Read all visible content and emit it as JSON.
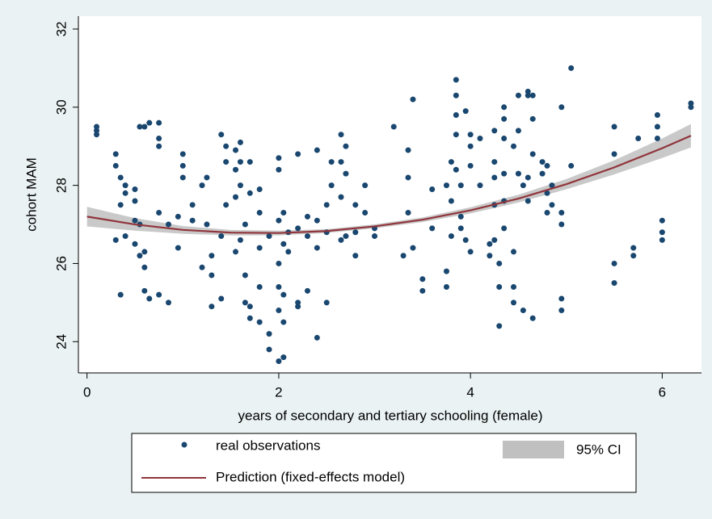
{
  "chart_data": {
    "type": "scatter",
    "xlabel": "years of secondary and tertiary schooling (female)",
    "ylabel": "cohort MAM",
    "xlim": [
      -0.09,
      6.41
    ],
    "ylim": [
      23.2,
      32.33
    ],
    "xticks": [
      0,
      2,
      4,
      6
    ],
    "yticks": [
      24,
      26,
      28,
      30,
      32
    ],
    "grid": false,
    "series": [
      {
        "name": "real observations",
        "color": "#1a476f",
        "x": [
          0.1,
          0.1,
          0.1,
          0.3,
          0.3,
          0.3,
          0.35,
          0.35,
          0.35,
          0.4,
          0.4,
          0.4,
          0.5,
          0.5,
          0.5,
          0.5,
          0.55,
          0.55,
          0.55,
          0.6,
          0.6,
          0.6,
          0.6,
          0.65,
          0.65,
          0.75,
          0.75,
          0.75,
          0.75,
          0.75,
          0.85,
          0.85,
          0.95,
          0.95,
          1.0,
          1.0,
          1.0,
          1.1,
          1.1,
          1.2,
          1.2,
          1.25,
          1.25,
          1.3,
          1.3,
          1.3,
          1.4,
          1.4,
          1.4,
          1.45,
          1.45,
          1.45,
          1.55,
          1.55,
          1.55,
          1.55,
          1.6,
          1.6,
          1.6,
          1.6,
          1.65,
          1.65,
          1.65,
          1.7,
          1.7,
          1.7,
          1.7,
          1.8,
          1.8,
          1.8,
          1.8,
          1.8,
          1.9,
          1.9,
          1.9,
          2.0,
          2.0,
          2.0,
          2.0,
          2.0,
          2.0,
          2.0,
          2.05,
          2.05,
          2.05,
          2.05,
          2.05,
          2.1,
          2.1,
          2.2,
          2.2,
          2.2,
          2.2,
          2.3,
          2.3,
          2.3,
          2.4,
          2.4,
          2.4,
          2.4,
          2.5,
          2.5,
          2.5,
          2.55,
          2.55,
          2.65,
          2.65,
          2.65,
          2.65,
          2.7,
          2.7,
          2.7,
          2.8,
          2.8,
          2.8,
          2.9,
          2.9,
          3.0,
          3.0,
          3.2,
          3.3,
          3.35,
          3.35,
          3.35,
          3.4,
          3.4,
          3.5,
          3.5,
          3.6,
          3.6,
          3.75,
          3.75,
          3.75,
          3.8,
          3.8,
          3.8,
          3.85,
          3.85,
          3.85,
          3.85,
          3.85,
          3.9,
          3.9,
          3.9,
          3.95,
          3.95,
          4.0,
          4.0,
          4.0,
          4.0,
          4.1,
          4.1,
          4.2,
          4.2,
          4.25,
          4.25,
          4.25,
          4.25,
          4.25,
          4.3,
          4.3,
          4.3,
          4.35,
          4.35,
          4.35,
          4.35,
          4.35,
          4.35,
          4.45,
          4.45,
          4.45,
          4.45,
          4.5,
          4.5,
          4.5,
          4.55,
          4.55,
          4.6,
          4.6,
          4.6,
          4.6,
          4.65,
          4.65,
          4.65,
          4.65,
          4.75,
          4.75,
          4.8,
          4.8,
          4.8,
          4.85,
          4.85,
          4.95,
          4.95,
          4.95,
          4.95,
          4.95,
          5.05,
          5.05,
          5.5,
          5.5,
          5.5,
          5.5,
          5.7,
          5.7,
          5.75,
          5.95,
          5.95,
          5.95,
          6.0,
          6.0,
          6.0,
          6.3,
          6.3
        ],
        "values": [
          29.3,
          29.4,
          29.5,
          28.8,
          28.5,
          26.6,
          25.2,
          27.5,
          28.2,
          26.7,
          27.8,
          28.0,
          27.9,
          27.6,
          27.1,
          26.5,
          29.5,
          26.2,
          27.0,
          29.5,
          26.3,
          25.9,
          25.3,
          29.6,
          25.1,
          29.6,
          29.2,
          29.0,
          25.2,
          27.3,
          25.0,
          27.0,
          26.4,
          27.2,
          28.8,
          28.5,
          28.2,
          27.5,
          27.1,
          25.9,
          28.0,
          28.2,
          27.0,
          26.2,
          25.7,
          24.9,
          29.3,
          25.1,
          26.7,
          29.0,
          28.6,
          27.5,
          28.9,
          28.4,
          27.7,
          26.3,
          29.1,
          28.6,
          28.0,
          26.6,
          27.0,
          25.7,
          25.0,
          28.6,
          27.8,
          24.6,
          24.9,
          27.9,
          27.3,
          26.4,
          25.4,
          24.5,
          24.2,
          23.8,
          26.7,
          28.7,
          28.4,
          23.5,
          24.8,
          25.4,
          26.0,
          27.1,
          27.3,
          26.5,
          25.2,
          24.5,
          23.6,
          26.8,
          26.3,
          28.8,
          26.9,
          25.0,
          24.9,
          27.2,
          26.7,
          25.3,
          28.9,
          27.1,
          26.4,
          24.1,
          27.5,
          26.8,
          25.0,
          28.6,
          28.0,
          29.3,
          28.6,
          27.7,
          26.6,
          29.0,
          28.3,
          26.7,
          27.5,
          26.2,
          26.8,
          28.0,
          27.3,
          26.7,
          26.9,
          29.5,
          26.2,
          28.9,
          28.2,
          27.3,
          30.2,
          26.4,
          25.3,
          25.6,
          27.9,
          26.9,
          28.0,
          25.4,
          25.8,
          28.6,
          27.6,
          26.7,
          30.7,
          30.3,
          29.8,
          29.3,
          28.4,
          28.0,
          27.2,
          26.9,
          29.9,
          26.6,
          29.3,
          29.0,
          28.5,
          26.3,
          29.2,
          28.0,
          26.2,
          26.5,
          29.4,
          28.6,
          28.2,
          27.5,
          26.6,
          26.0,
          25.4,
          24.4,
          30.0,
          29.7,
          29.2,
          28.3,
          27.6,
          26.9,
          29.0,
          26.3,
          25.0,
          25.4,
          30.3,
          29.4,
          28.3,
          28.0,
          24.8,
          30.4,
          30.3,
          28.2,
          27.6,
          30.3,
          29.7,
          28.8,
          24.6,
          28.6,
          28.3,
          28.5,
          27.8,
          27.3,
          28.0,
          27.5,
          30.0,
          27.3,
          27.0,
          25.1,
          24.8,
          31.0,
          28.5,
          29.5,
          26.0,
          25.5,
          28.8,
          26.4,
          26.2,
          29.2,
          29.8,
          29.5,
          29.2,
          27.1,
          26.8,
          26.6,
          30.1,
          30.0
        ]
      },
      {
        "name": "Prediction (fixed-effects model)",
        "color": "#90353b",
        "x": [
          0,
          0.5,
          1,
          1.5,
          2,
          2.5,
          3,
          3.5,
          4,
          4.5,
          5,
          5.5,
          6,
          6.3
        ],
        "values": [
          27.2,
          27.0,
          26.86,
          26.79,
          26.78,
          26.83,
          26.95,
          27.12,
          27.36,
          27.66,
          28.03,
          28.46,
          28.95,
          29.27
        ]
      },
      {
        "name": "95% CI",
        "color": "#c0c0c0",
        "x": [
          0,
          0.5,
          1,
          1.5,
          2,
          2.5,
          3,
          3.5,
          4,
          4.5,
          5,
          5.5,
          6,
          6.3
        ],
        "lower": [
          26.95,
          26.84,
          26.76,
          26.72,
          26.72,
          26.78,
          26.9,
          27.06,
          27.28,
          27.56,
          27.9,
          28.28,
          28.7,
          28.97
        ],
        "upper": [
          27.45,
          27.16,
          26.96,
          26.86,
          26.84,
          26.88,
          27.0,
          27.18,
          27.44,
          27.76,
          28.16,
          28.64,
          29.2,
          29.57
        ]
      }
    ]
  }
}
